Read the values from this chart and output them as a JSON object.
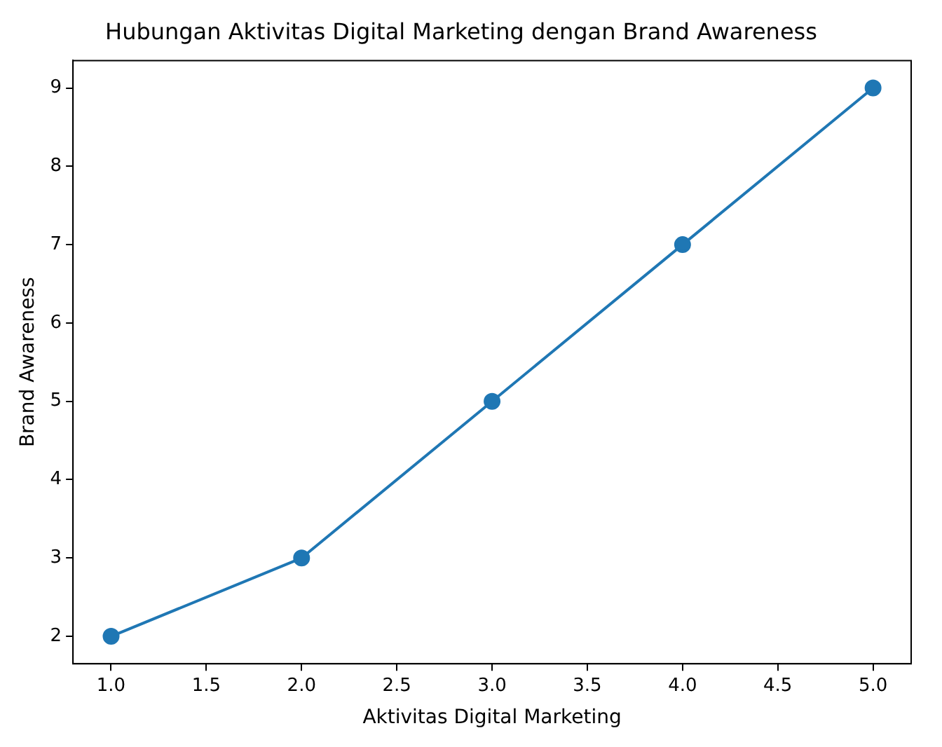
{
  "chart_data": {
    "type": "line",
    "title": "Hubungan Aktivitas Digital Marketing dengan Brand Awareness",
    "xlabel": "Aktivitas Digital Marketing",
    "ylabel": "Brand Awareness",
    "x": [
      1,
      2,
      3,
      4,
      5
    ],
    "series": [
      {
        "color": "#1f77b4",
        "values": [
          2,
          3,
          5,
          7,
          9
        ]
      }
    ],
    "xlim": [
      0.8,
      5.2
    ],
    "xticks": [
      {
        "value": 1,
        "label": "1.0"
      },
      {
        "value": 1.5,
        "label": "1.5"
      },
      {
        "value": 2,
        "label": "2.0"
      },
      {
        "value": 2.5,
        "label": "2.5"
      },
      {
        "value": 3,
        "label": "3.0"
      },
      {
        "value": 3.5,
        "label": "3.5"
      },
      {
        "value": 4,
        "label": "4.0"
      },
      {
        "value": 4.5,
        "label": "4.5"
      },
      {
        "value": 5,
        "label": "5.0"
      }
    ],
    "ylim": [
      1.65,
      9.35
    ],
    "yticks": [
      2,
      3,
      4,
      5,
      6,
      7,
      8,
      9
    ],
    "grid": false,
    "legend": false,
    "marker": "circle",
    "line_style": "solid"
  }
}
